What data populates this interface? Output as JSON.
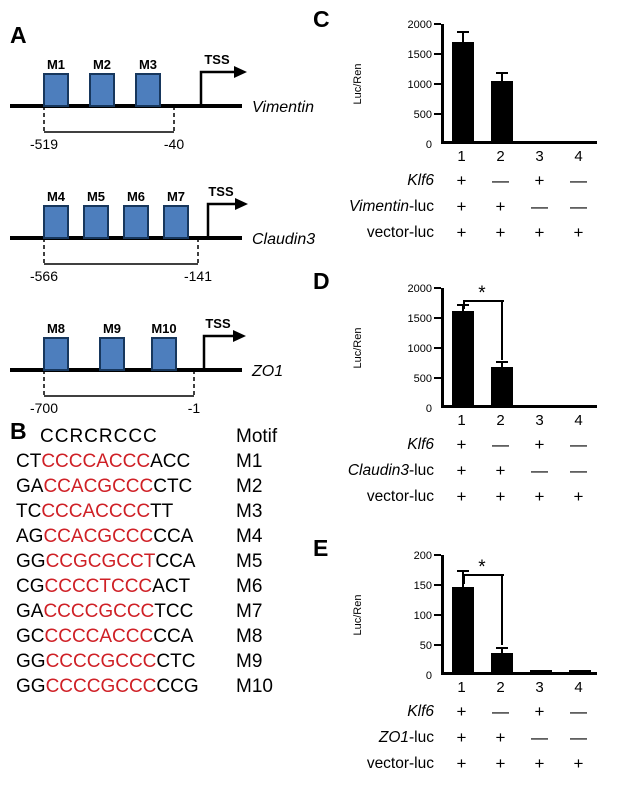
{
  "colors": {
    "box_fill": "#4d7ebd",
    "box_stroke": "#17375d",
    "red": "#cf2026",
    "bar": "#000000"
  },
  "panelA": {
    "label": "A",
    "genes": [
      {
        "name": "Vimentin",
        "tss": "TSS",
        "motifs": [
          "M1",
          "M2",
          "M3"
        ],
        "region": {
          "start": "-519",
          "end": "-40"
        }
      },
      {
        "name": "Claudin3",
        "tss": "TSS",
        "motifs": [
          "M4",
          "M5",
          "M6",
          "M7"
        ],
        "region": {
          "start": "-566",
          "end": "-141"
        }
      },
      {
        "name": "ZO1",
        "tss": "TSS",
        "motifs": [
          "M8",
          "M9",
          "M10"
        ],
        "region": {
          "start": "-700",
          "end": "-1"
        }
      }
    ]
  },
  "panelB": {
    "label": "B",
    "consensus": "CCRCRCCC",
    "header": "Motif",
    "rows": [
      {
        "pre": "CT",
        "core": "CCCCACCC",
        "post": "ACC",
        "motif": "M1"
      },
      {
        "pre": "GA",
        "core": "CCACGCCC",
        "post": "CTC",
        "motif": "M2"
      },
      {
        "pre": "TC",
        "core": "CCCACCCC",
        "post": "TT",
        "motif": "M3"
      },
      {
        "pre": "AG",
        "core": "CCACGCCC",
        "post": "CCA",
        "motif": "M4"
      },
      {
        "pre": "GG",
        "core": "CCGCGCCT",
        "post": "CCA",
        "motif": "M5"
      },
      {
        "pre": "CG",
        "core": "CCCCTCCC",
        "post": "ACT",
        "motif": "M6"
      },
      {
        "pre": "GA",
        "core": "CCCCGCCC",
        "post": "TCC",
        "motif": "M7"
      },
      {
        "pre": "GC",
        "core": "CCCCACCC",
        "post": "CCA",
        "motif": "M8"
      },
      {
        "pre": "GG",
        "core": "CCCCGCCC",
        "post": "CTC",
        "motif": "M9"
      },
      {
        "pre": "GG",
        "core": "CCCCGCCC",
        "post": "CCG",
        "motif": "M10"
      }
    ]
  },
  "chart_data": [
    {
      "type": "bar",
      "panel": "C",
      "ylabel": "Luc/Ren",
      "ymax": 2000,
      "yticks": [
        "0",
        "500",
        "1000",
        "1500",
        "2000"
      ],
      "categories": [
        "1",
        "2",
        "3",
        "4"
      ],
      "values": [
        1700,
        1020,
        0,
        0
      ],
      "errors": [
        150,
        120,
        0,
        0
      ]
    },
    {
      "type": "bar",
      "panel": "D",
      "ylabel": "Luc/Ren",
      "ymax": 2000,
      "yticks": [
        "0",
        "500",
        "1000",
        "1500",
        "2000"
      ],
      "categories": [
        "1",
        "2",
        "3",
        "4"
      ],
      "values": [
        1600,
        650,
        8,
        8
      ],
      "errors": [
        90,
        60,
        0,
        0
      ],
      "significance": {
        "pair": [
          1,
          2
        ],
        "label": "*"
      }
    },
    {
      "type": "bar",
      "panel": "E",
      "ylabel": "Luc/Ren",
      "ymax": 200,
      "yticks": [
        "0",
        "50",
        "100",
        "150",
        "200"
      ],
      "categories": [
        "1",
        "2",
        "3",
        "4"
      ],
      "values": [
        145,
        33,
        3,
        3
      ],
      "errors": [
        25,
        6,
        0,
        0
      ],
      "significance": {
        "pair": [
          1,
          2
        ],
        "label": "*"
      }
    }
  ],
  "panels": {
    "C": {
      "label": "C",
      "rows": [
        {
          "italic": "Klf6",
          "plain": "",
          "signs": [
            "+",
            "—",
            "+",
            "—"
          ]
        },
        {
          "italic": "Vimentin",
          "plain": "-luc",
          "signs": [
            "+",
            "+",
            "—",
            "—"
          ]
        },
        {
          "italic": "",
          "plain": "vector-luc",
          "signs": [
            "+",
            "+",
            "+",
            "+"
          ]
        }
      ]
    },
    "D": {
      "label": "D",
      "rows": [
        {
          "italic": "Klf6",
          "plain": "",
          "signs": [
            "+",
            "—",
            "+",
            "—"
          ]
        },
        {
          "italic": "Claudin3",
          "plain": "-luc",
          "signs": [
            "+",
            "+",
            "—",
            "—"
          ]
        },
        {
          "italic": "",
          "plain": "vector-luc",
          "signs": [
            "+",
            "+",
            "+",
            "+"
          ]
        }
      ]
    },
    "E": {
      "label": "E",
      "rows": [
        {
          "italic": "Klf6",
          "plain": "",
          "signs": [
            "+",
            "—",
            "+",
            "—"
          ]
        },
        {
          "italic": "ZO1",
          "plain": "-luc",
          "signs": [
            "+",
            "+",
            "—",
            "—"
          ]
        },
        {
          "italic": "",
          "plain": "vector-luc",
          "signs": [
            "+",
            "+",
            "+",
            "+"
          ]
        }
      ]
    }
  }
}
